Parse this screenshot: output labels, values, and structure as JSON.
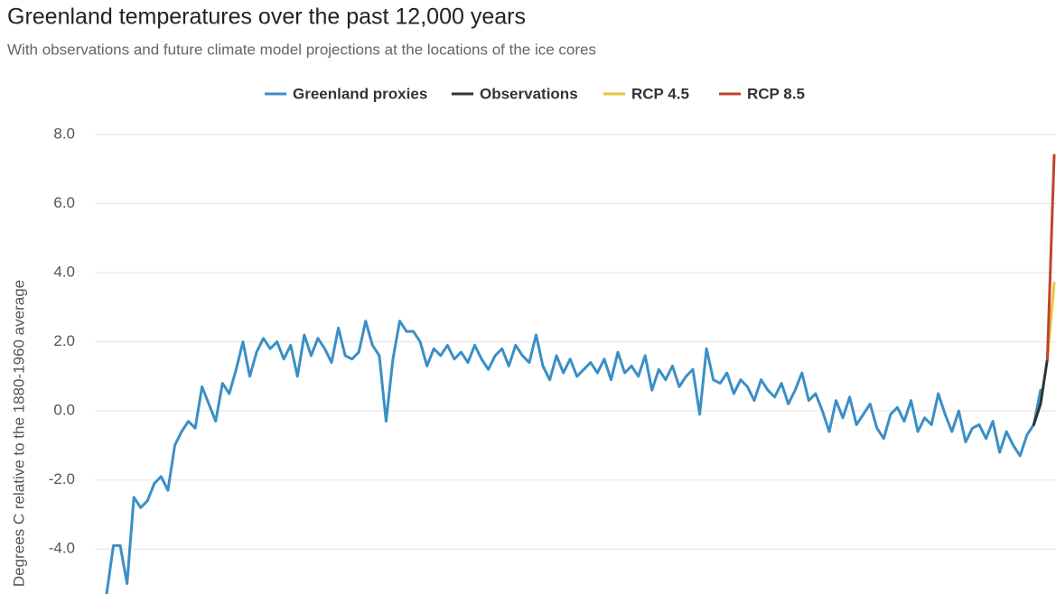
{
  "chart_data": {
    "type": "line",
    "title": "Greenland temperatures over the past 12,000 years",
    "subtitle": "With observations and future climate model projections at the locations of the ice cores",
    "y_label": "Degrees C relative to the 1880-1960 average",
    "ylim": [
      -5.3,
      8.0
    ],
    "yticks": [
      {
        "value": -4,
        "label": "-4.0"
      },
      {
        "value": -2,
        "label": "-2.0"
      },
      {
        "value": 0,
        "label": "0.0"
      },
      {
        "value": 2,
        "label": "2.0"
      },
      {
        "value": 4,
        "label": "4.0"
      },
      {
        "value": 6,
        "label": "6.0"
      },
      {
        "value": 8,
        "label": "8.0"
      }
    ],
    "grid": true,
    "legend": "top",
    "series": [
      {
        "name": "Greenland proxies",
        "color": "#3a8fc7",
        "values": [
          -5.3,
          -3.9,
          -3.9,
          -5.0,
          -2.5,
          -2.8,
          -2.6,
          -2.1,
          -1.9,
          -2.3,
          -1.0,
          -0.6,
          -0.3,
          -0.5,
          0.7,
          0.2,
          -0.3,
          0.8,
          0.5,
          1.2,
          2.0,
          1.0,
          1.7,
          2.1,
          1.8,
          2.0,
          1.5,
          1.9,
          1.0,
          2.2,
          1.6,
          2.1,
          1.8,
          1.4,
          2.4,
          1.6,
          1.5,
          1.7,
          2.6,
          1.9,
          1.6,
          -0.3,
          1.5,
          2.6,
          2.3,
          2.3,
          2.0,
          1.3,
          1.8,
          1.6,
          1.9,
          1.5,
          1.7,
          1.4,
          1.9,
          1.5,
          1.2,
          1.6,
          1.8,
          1.3,
          1.9,
          1.6,
          1.4,
          2.2,
          1.3,
          0.9,
          1.6,
          1.1,
          1.5,
          1.0,
          1.2,
          1.4,
          1.1,
          1.5,
          0.9,
          1.7,
          1.1,
          1.3,
          1.0,
          1.6,
          0.6,
          1.2,
          0.9,
          1.3,
          0.7,
          1.0,
          1.2,
          -0.1,
          1.8,
          0.9,
          0.8,
          1.1,
          0.5,
          0.9,
          0.7,
          0.3,
          0.9,
          0.6,
          0.4,
          0.8,
          0.2,
          0.6,
          1.1,
          0.3,
          0.5,
          0.0,
          -0.6,
          0.3,
          -0.2,
          0.4,
          -0.4,
          -0.1,
          0.2,
          -0.5,
          -0.8,
          -0.1,
          0.1,
          -0.3,
          0.3,
          -0.6,
          -0.2,
          -0.4,
          0.5,
          -0.1,
          -0.6,
          0.0,
          -0.9,
          -0.5,
          -0.4,
          -0.8,
          -0.3,
          -1.2,
          -0.6,
          -1.0,
          -1.3,
          -0.7,
          -0.4,
          0.6,
          null,
          null
        ]
      },
      {
        "name": "Observations",
        "color": "#333333",
        "values": [
          null,
          null,
          null,
          null,
          null,
          null,
          null,
          null,
          null,
          null,
          null,
          null,
          null,
          null,
          null,
          null,
          null,
          null,
          null,
          null,
          null,
          null,
          null,
          null,
          null,
          null,
          null,
          null,
          null,
          null,
          null,
          null,
          null,
          null,
          null,
          null,
          null,
          null,
          null,
          null,
          null,
          null,
          null,
          null,
          null,
          null,
          null,
          null,
          null,
          null,
          null,
          null,
          null,
          null,
          null,
          null,
          null,
          null,
          null,
          null,
          null,
          null,
          null,
          null,
          null,
          null,
          null,
          null,
          null,
          null,
          null,
          null,
          null,
          null,
          null,
          null,
          null,
          null,
          null,
          null,
          null,
          null,
          null,
          null,
          null,
          null,
          null,
          null,
          null,
          null,
          null,
          null,
          null,
          null,
          null,
          null,
          null,
          null,
          null,
          null,
          null,
          null,
          null,
          null,
          null,
          null,
          null,
          null,
          null,
          null,
          null,
          null,
          null,
          null,
          null,
          null,
          null,
          null,
          null,
          null,
          null,
          null,
          null,
          null,
          null,
          null,
          null,
          null,
          null,
          null,
          null,
          null,
          null,
          null,
          null,
          null,
          -0.4,
          0.2,
          1.5,
          null
        ]
      },
      {
        "name": "RCP 4.5",
        "color": "#e8c43a",
        "values": [
          null,
          null,
          null,
          null,
          null,
          null,
          null,
          null,
          null,
          null,
          null,
          null,
          null,
          null,
          null,
          null,
          null,
          null,
          null,
          null,
          null,
          null,
          null,
          null,
          null,
          null,
          null,
          null,
          null,
          null,
          null,
          null,
          null,
          null,
          null,
          null,
          null,
          null,
          null,
          null,
          null,
          null,
          null,
          null,
          null,
          null,
          null,
          null,
          null,
          null,
          null,
          null,
          null,
          null,
          null,
          null,
          null,
          null,
          null,
          null,
          null,
          null,
          null,
          null,
          null,
          null,
          null,
          null,
          null,
          null,
          null,
          null,
          null,
          null,
          null,
          null,
          null,
          null,
          null,
          null,
          null,
          null,
          null,
          null,
          null,
          null,
          null,
          null,
          null,
          null,
          null,
          null,
          null,
          null,
          null,
          null,
          null,
          null,
          null,
          null,
          null,
          null,
          null,
          null,
          null,
          null,
          null,
          null,
          null,
          null,
          null,
          null,
          null,
          null,
          null,
          null,
          null,
          null,
          null,
          null,
          null,
          null,
          null,
          null,
          null,
          null,
          null,
          null,
          null,
          null,
          null,
          null,
          null,
          null,
          null,
          null,
          null,
          null,
          1.5,
          3.7
        ]
      },
      {
        "name": "RCP 8.5",
        "color": "#c0432b",
        "values": [
          null,
          null,
          null,
          null,
          null,
          null,
          null,
          null,
          null,
          null,
          null,
          null,
          null,
          null,
          null,
          null,
          null,
          null,
          null,
          null,
          null,
          null,
          null,
          null,
          null,
          null,
          null,
          null,
          null,
          null,
          null,
          null,
          null,
          null,
          null,
          null,
          null,
          null,
          null,
          null,
          null,
          null,
          null,
          null,
          null,
          null,
          null,
          null,
          null,
          null,
          null,
          null,
          null,
          null,
          null,
          null,
          null,
          null,
          null,
          null,
          null,
          null,
          null,
          null,
          null,
          null,
          null,
          null,
          null,
          null,
          null,
          null,
          null,
          null,
          null,
          null,
          null,
          null,
          null,
          null,
          null,
          null,
          null,
          null,
          null,
          null,
          null,
          null,
          null,
          null,
          null,
          null,
          null,
          null,
          null,
          null,
          null,
          null,
          null,
          null,
          null,
          null,
          null,
          null,
          null,
          null,
          null,
          null,
          null,
          null,
          null,
          null,
          null,
          null,
          null,
          null,
          null,
          null,
          null,
          null,
          null,
          null,
          null,
          null,
          null,
          null,
          null,
          null,
          null,
          null,
          null,
          null,
          null,
          null,
          null,
          null,
          null,
          null,
          1.5,
          7.4
        ]
      }
    ]
  }
}
